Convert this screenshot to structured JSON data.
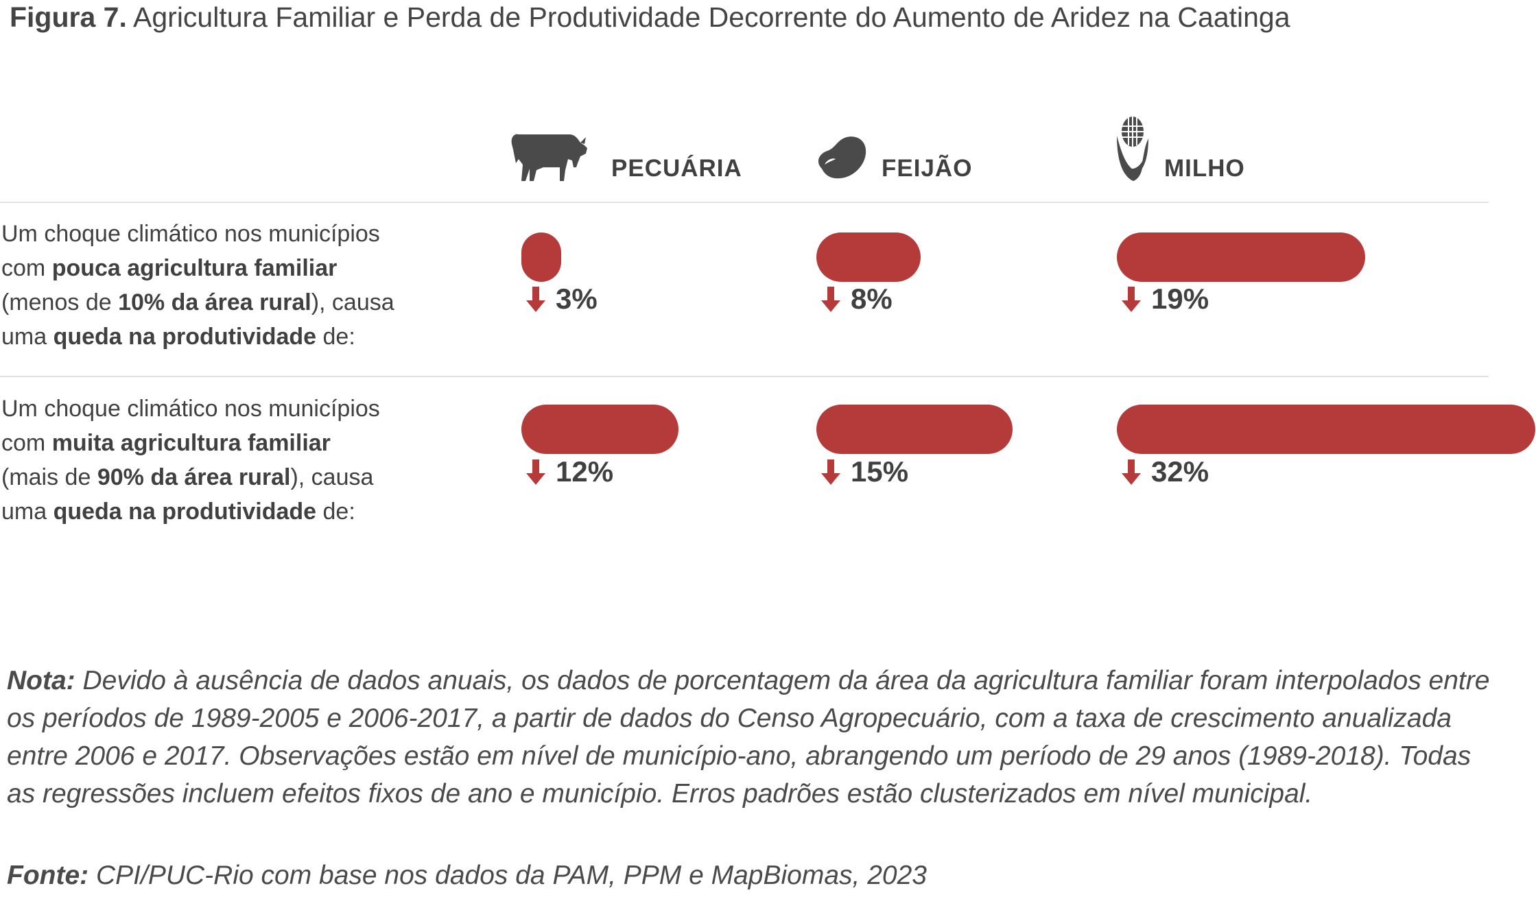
{
  "title": {
    "label": "Figura 7.",
    "text": "Agricultura Familiar e Perda de Produtividade Decorrente do Aumento de Aridez na Caatinga"
  },
  "columns": [
    {
      "label": "PECUÁRIA",
      "icon": "cow-icon"
    },
    {
      "label": "FEIJÃO",
      "icon": "bean-icon"
    },
    {
      "label": "MILHO",
      "icon": "corn-icon"
    }
  ],
  "rows": [
    {
      "parts": [
        {
          "t": "Um choque climático nos municípios",
          "b": false
        },
        {
          "t": "com ",
          "b": false,
          "nl": true
        },
        {
          "t": "pouca agricultura familiar",
          "b": true
        },
        {
          "t": "(menos de ",
          "b": false,
          "nl": true
        },
        {
          "t": "10% da área rural",
          "b": true
        },
        {
          "t": "), causa",
          "b": false
        },
        {
          "t": "uma ",
          "b": false,
          "nl": true
        },
        {
          "t": "queda na produtividade",
          "b": true
        },
        {
          "t": " de:",
          "b": false
        }
      ]
    },
    {
      "parts": [
        {
          "t": "Um choque climático nos municípios",
          "b": false
        },
        {
          "t": "com ",
          "b": false,
          "nl": true
        },
        {
          "t": "muita agricultura familiar",
          "b": true
        },
        {
          "t": "(mais de ",
          "b": false,
          "nl": true
        },
        {
          "t": "90% da área rural",
          "b": true
        },
        {
          "t": "), causa",
          "b": false
        },
        {
          "t": "uma ",
          "b": false,
          "nl": true
        },
        {
          "t": "queda na produtividade",
          "b": true
        },
        {
          "t": " de:",
          "b": false
        }
      ]
    }
  ],
  "chart_data": {
    "type": "bar",
    "categories": [
      "PECUÁRIA",
      "FEIJÃO",
      "MILHO"
    ],
    "series": [
      {
        "values": [
          3,
          8,
          19
        ],
        "labels": [
          "3%",
          "8%",
          "19%"
        ]
      },
      {
        "values": [
          12,
          15,
          32
        ],
        "labels": [
          "12%",
          "15%",
          "32%"
        ]
      }
    ],
    "unit": "%",
    "direction": "down",
    "bar_color": "#b43b3a",
    "arrow_color": "#b43b3a"
  },
  "note": {
    "label": "Nota:",
    "text": " Devido à ausência de dados anuais, os dados de porcentagem da área da agricultura familiar foram interpolados entre os períodos de 1989-2005 e 2006-2017, a partir de dados do Censo Agropecuário, com a taxa de crescimento anualizada entre 2006 e 2017. Observações estão em nível de município-ano, abrangendo um período de 29 anos (1989-2018). Todas as regressões incluem efeitos fixos de ano e município. Erros padrões estão clusterizados em nível municipal."
  },
  "source": {
    "label": "Fonte:",
    "text": " CPI/PUC-Rio com base nos dados da PAM, PPM e MapBiomas, 2023"
  }
}
